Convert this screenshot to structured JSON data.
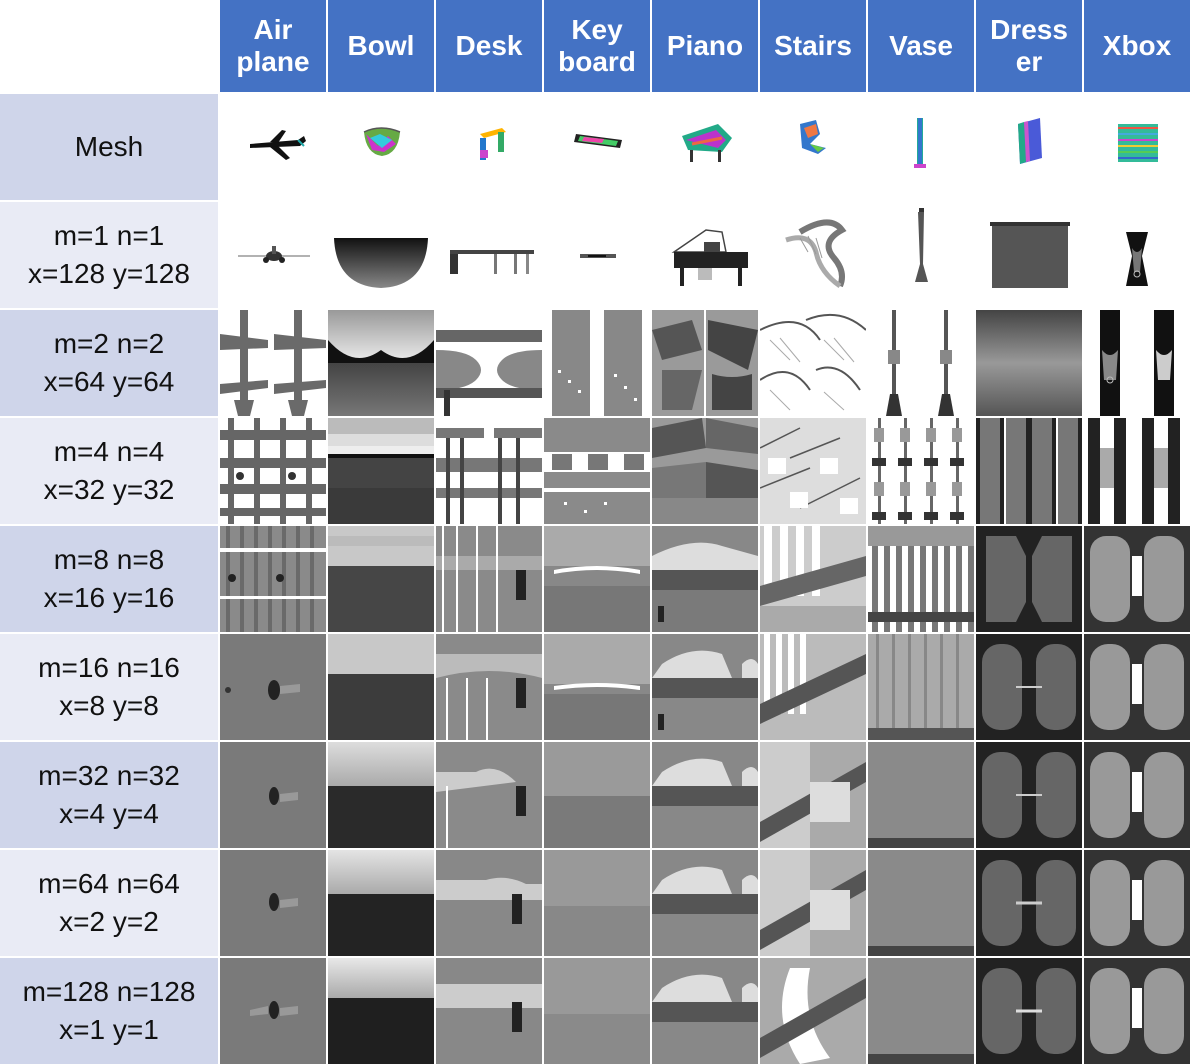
{
  "columns": [
    "Air\nplane",
    "Bowl",
    "Desk",
    "Key\nboard",
    "Piano",
    "Stairs",
    "Vase",
    "Dress\ner",
    "Xbox"
  ],
  "rows": [
    {
      "label": "Mesh",
      "shade": "dark"
    },
    {
      "label": "m=1 n=1\nx=128 y=128",
      "shade": "light"
    },
    {
      "label": "m=2 n=2\nx=64 y=64",
      "shade": "dark"
    },
    {
      "label": "m=4 n=4\nx=32 y=32",
      "shade": "light"
    },
    {
      "label": "m=8 n=8\nx=16 y=16",
      "shade": "dark"
    },
    {
      "label": "m=16 n=16\nx=8 y=8",
      "shade": "light"
    },
    {
      "label": "m=32 n=32\nx=4 y=4",
      "shade": "dark"
    },
    {
      "label": "m=64 n=64\nx=2 y=2",
      "shade": "light"
    },
    {
      "label": "m=128 n=128\nx=1 y=1",
      "shade": "dark"
    }
  ],
  "colors": {
    "header_bg": "#4472C4",
    "row_dark": "#CFD5EA",
    "row_light": "#E9EBF5"
  }
}
